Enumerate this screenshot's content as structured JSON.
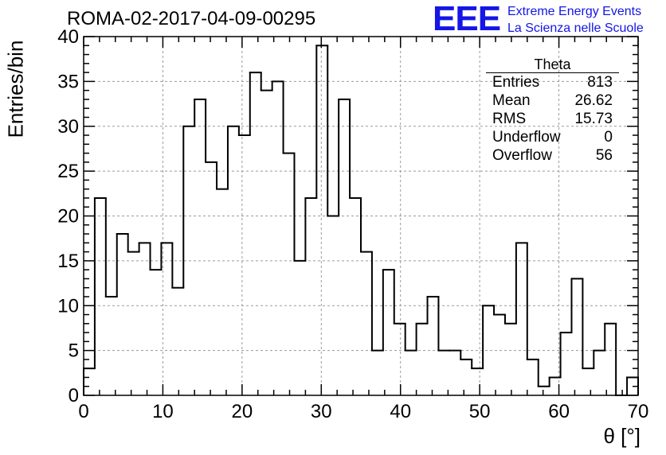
{
  "header": {
    "run_title": "ROMA-02-2017-04-09-00295",
    "logo_text": "EEE",
    "brand_line1": "Extreme Energy Events",
    "brand_line2": "La Scienza nelle Scuole",
    "brand_color": "#1515e6"
  },
  "stats_box": {
    "title": "Theta",
    "rows": [
      {
        "label": "Entries",
        "value": "813"
      },
      {
        "label": "Mean",
        "value": "26.62"
      },
      {
        "label": "RMS",
        "value": "15.73"
      },
      {
        "label": "Underflow",
        "value": "0"
      },
      {
        "label": "Overflow",
        "value": "56"
      }
    ]
  },
  "chart_data": {
    "type": "bar",
    "style": "step-histogram",
    "title": "ROMA-02-2017-04-09-00295",
    "xlabel": "θ [°]",
    "ylabel": "Entries/bin",
    "xlim": [
      0,
      70
    ],
    "ylim": [
      0,
      40
    ],
    "bin_width": 1.4,
    "bin_edges_start": 0,
    "values": [
      3,
      22,
      11,
      18,
      16,
      17,
      14,
      17,
      12,
      30,
      33,
      26,
      23,
      30,
      29,
      36,
      34,
      35,
      27,
      15,
      22,
      39,
      20,
      33,
      22,
      16,
      5,
      14,
      8,
      5,
      8,
      11,
      5,
      5,
      4,
      3,
      10,
      9,
      8,
      17,
      4,
      1,
      2,
      7,
      13,
      3,
      5,
      8,
      0,
      2
    ],
    "xticks": [
      0,
      10,
      20,
      30,
      40,
      50,
      60,
      70
    ],
    "yticks": [
      0,
      5,
      10,
      15,
      20,
      25,
      30,
      35,
      40
    ],
    "grid": true,
    "line_color": "#000000",
    "grid_color": "#9a9a9a"
  }
}
